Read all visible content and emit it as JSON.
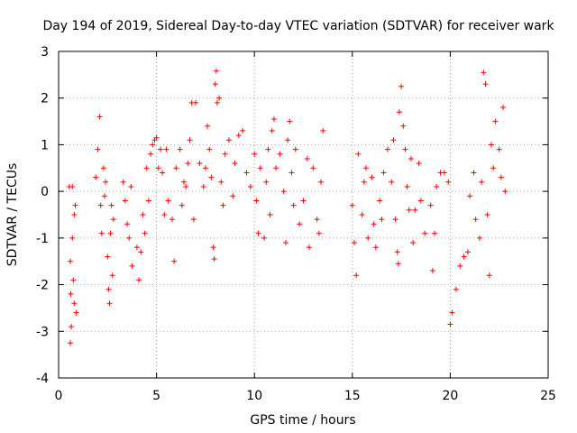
{
  "chart_data": {
    "type": "scatter",
    "title": "Day 194 of 2019, Sidereal Day-to-day VTEC variation (SDTVAR) for receiver wark",
    "xlabel": "GPS time / hours",
    "ylabel": "SDTVAR / TECUs",
    "xlim": [
      0,
      25
    ],
    "ylim": [
      -4,
      3
    ],
    "xticks": [
      0,
      5,
      10,
      15,
      20,
      25
    ],
    "yticks": [
      -4,
      -3,
      -2,
      -1,
      0,
      1,
      2,
      3
    ],
    "grid": true,
    "marker": "+",
    "color": "#ff0000",
    "series": [
      {
        "name": "SDTVAR",
        "points": [
          [
            0.55,
            0.1
          ],
          [
            0.6,
            -1.5
          ],
          [
            0.62,
            -2.2
          ],
          [
            0.65,
            -2.9
          ],
          [
            0.6,
            -3.25
          ],
          [
            0.7,
            -1.0
          ],
          [
            0.75,
            -1.9
          ],
          [
            0.8,
            -2.4
          ],
          [
            0.8,
            -0.5
          ],
          [
            0.85,
            -0.3
          ],
          [
            0.7,
            0.1
          ],
          [
            0.9,
            -2.6
          ],
          [
            1.9,
            0.3
          ],
          [
            2.0,
            0.9
          ],
          [
            2.1,
            1.6
          ],
          [
            2.15,
            -0.3
          ],
          [
            2.2,
            -0.9
          ],
          [
            2.3,
            0.5
          ],
          [
            2.35,
            -0.1
          ],
          [
            2.4,
            0.2
          ],
          [
            2.5,
            -1.4
          ],
          [
            2.55,
            -2.1
          ],
          [
            2.6,
            -2.4
          ],
          [
            2.65,
            -0.9
          ],
          [
            2.7,
            -0.3
          ],
          [
            2.75,
            -1.8
          ],
          [
            2.8,
            -0.6
          ],
          [
            3.3,
            0.2
          ],
          [
            3.4,
            -0.2
          ],
          [
            3.5,
            -0.7
          ],
          [
            3.6,
            -1.0
          ],
          [
            3.7,
            0.1
          ],
          [
            3.75,
            -1.6
          ],
          [
            4.0,
            -1.2
          ],
          [
            4.1,
            -1.9
          ],
          [
            4.2,
            -1.3
          ],
          [
            4.3,
            -0.5
          ],
          [
            4.4,
            -0.9
          ],
          [
            4.5,
            0.5
          ],
          [
            4.6,
            -0.2
          ],
          [
            4.7,
            0.8
          ],
          [
            4.8,
            1.0
          ],
          [
            4.9,
            1.1
          ],
          [
            5.0,
            1.15
          ],
          [
            5.1,
            0.5
          ],
          [
            5.2,
            0.9
          ],
          [
            5.3,
            0.4
          ],
          [
            5.4,
            -0.5
          ],
          [
            5.5,
            0.9
          ],
          [
            5.6,
            -0.2
          ],
          [
            5.8,
            -0.6
          ],
          [
            5.9,
            -1.5
          ],
          [
            6.0,
            0.5
          ],
          [
            6.2,
            0.9
          ],
          [
            6.3,
            -0.3
          ],
          [
            6.4,
            0.2
          ],
          [
            6.5,
            0.1
          ],
          [
            6.6,
            0.6
          ],
          [
            6.7,
            1.1
          ],
          [
            6.8,
            1.9
          ],
          [
            6.9,
            -0.6
          ],
          [
            7.0,
            1.9
          ],
          [
            7.2,
            0.6
          ],
          [
            7.4,
            0.1
          ],
          [
            7.5,
            0.5
          ],
          [
            7.6,
            1.4
          ],
          [
            7.7,
            0.9
          ],
          [
            7.8,
            0.3
          ],
          [
            7.9,
            -1.2
          ],
          [
            7.95,
            -1.45
          ],
          [
            8.0,
            2.3
          ],
          [
            8.05,
            2.58
          ],
          [
            8.1,
            1.9
          ],
          [
            8.2,
            2.0
          ],
          [
            8.3,
            0.2
          ],
          [
            8.4,
            -0.3
          ],
          [
            8.5,
            0.8
          ],
          [
            8.7,
            1.1
          ],
          [
            8.9,
            -0.1
          ],
          [
            9.0,
            0.6
          ],
          [
            9.2,
            1.2
          ],
          [
            9.4,
            1.3
          ],
          [
            9.6,
            0.4
          ],
          [
            9.8,
            0.1
          ],
          [
            10.0,
            0.8
          ],
          [
            10.1,
            -0.2
          ],
          [
            10.2,
            -0.9
          ],
          [
            10.3,
            0.5
          ],
          [
            10.5,
            -1.0
          ],
          [
            10.6,
            0.2
          ],
          [
            10.7,
            0.9
          ],
          [
            10.8,
            -0.5
          ],
          [
            10.9,
            1.3
          ],
          [
            11.0,
            1.55
          ],
          [
            11.1,
            0.5
          ],
          [
            11.3,
            0.8
          ],
          [
            11.5,
            0.0
          ],
          [
            11.6,
            -1.1
          ],
          [
            11.7,
            1.1
          ],
          [
            11.8,
            1.5
          ],
          [
            11.9,
            0.4
          ],
          [
            12.0,
            -0.3
          ],
          [
            12.1,
            0.9
          ],
          [
            12.3,
            -0.7
          ],
          [
            12.5,
            -0.2
          ],
          [
            12.7,
            0.7
          ],
          [
            12.8,
            -1.2
          ],
          [
            13.0,
            0.5
          ],
          [
            13.2,
            -0.6
          ],
          [
            13.3,
            -0.9
          ],
          [
            13.4,
            0.2
          ],
          [
            13.5,
            1.3
          ],
          [
            15.0,
            -0.3
          ],
          [
            15.1,
            -1.1
          ],
          [
            15.2,
            -1.8
          ],
          [
            15.3,
            0.8
          ],
          [
            15.5,
            -0.5
          ],
          [
            15.6,
            0.2
          ],
          [
            15.7,
            0.5
          ],
          [
            15.8,
            -1.0
          ],
          [
            16.0,
            0.3
          ],
          [
            16.1,
            -0.7
          ],
          [
            16.2,
            -1.2
          ],
          [
            16.4,
            -0.2
          ],
          [
            16.5,
            -0.6
          ],
          [
            16.6,
            0.4
          ],
          [
            16.8,
            0.9
          ],
          [
            17.0,
            0.2
          ],
          [
            17.1,
            1.1
          ],
          [
            17.2,
            -0.6
          ],
          [
            17.3,
            -1.3
          ],
          [
            17.35,
            -1.55
          ],
          [
            17.4,
            1.7
          ],
          [
            17.5,
            2.25
          ],
          [
            17.6,
            1.4
          ],
          [
            17.7,
            0.9
          ],
          [
            17.8,
            0.1
          ],
          [
            17.9,
            -0.4
          ],
          [
            18.0,
            0.7
          ],
          [
            18.1,
            -1.1
          ],
          [
            18.2,
            -0.4
          ],
          [
            18.4,
            0.6
          ],
          [
            18.5,
            -0.2
          ],
          [
            18.7,
            -0.9
          ],
          [
            19.0,
            -0.3
          ],
          [
            19.1,
            -1.7
          ],
          [
            19.2,
            -0.9
          ],
          [
            19.3,
            0.1
          ],
          [
            19.5,
            0.4
          ],
          [
            19.7,
            0.4
          ],
          [
            19.9,
            0.2
          ],
          [
            20.0,
            -2.85
          ],
          [
            20.1,
            -2.6
          ],
          [
            20.3,
            -2.1
          ],
          [
            20.5,
            -1.6
          ],
          [
            20.7,
            -1.4
          ],
          [
            20.9,
            -1.3
          ],
          [
            21.0,
            -0.1
          ],
          [
            21.2,
            0.4
          ],
          [
            21.3,
            -0.6
          ],
          [
            21.5,
            -1.0
          ],
          [
            21.6,
            0.2
          ],
          [
            21.7,
            2.55
          ],
          [
            21.8,
            2.3
          ],
          [
            21.9,
            -0.5
          ],
          [
            22.0,
            -1.8
          ],
          [
            22.1,
            1.0
          ],
          [
            22.2,
            0.5
          ],
          [
            22.3,
            1.5
          ],
          [
            22.5,
            0.9
          ],
          [
            22.6,
            0.3
          ],
          [
            22.7,
            1.8
          ],
          [
            22.8,
            0.0
          ]
        ]
      }
    ]
  }
}
